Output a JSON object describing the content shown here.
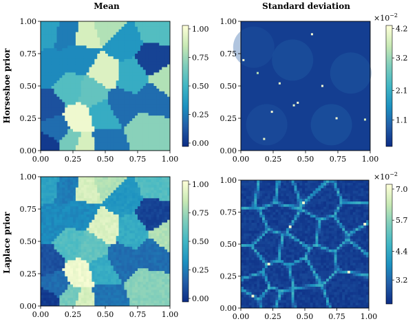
{
  "column_titles": [
    "Mean",
    "Standard deviation"
  ],
  "row_labels": [
    "Horseshoe prior",
    "Laplace prior"
  ],
  "colormap": [
    "#ffffd9",
    "#c7e9b4",
    "#7fcdbb",
    "#41b6c4",
    "#1d91c0",
    "#225ea8",
    "#0c2c84"
  ],
  "chart_data": [
    {
      "type": "heatmap",
      "title": "",
      "row": "Horseshoe prior",
      "column": "Mean",
      "xlabel": "",
      "ylabel": "",
      "xlim": [
        0,
        1
      ],
      "ylim": [
        0,
        1
      ],
      "x_ticks": [
        "0.00",
        "0.25",
        "0.50",
        "0.75",
        "1.00"
      ],
      "y_ticks": [
        "0.00",
        "0.25",
        "0.50",
        "0.75",
        "1.00"
      ],
      "colorbar": {
        "ticks": [
          "0.00",
          "0.25",
          "0.50",
          "0.75",
          "1.00"
        ],
        "tick_values": [
          0,
          0.25,
          0.5,
          0.75,
          1.0
        ],
        "range": [
          -0.03,
          1.03
        ],
        "multiplier": ""
      },
      "cells": [
        {
          "x": 0.04,
          "y": 0.95,
          "value": 0.4
        },
        {
          "x": 0.22,
          "y": 0.92,
          "value": 0.25
        },
        {
          "x": 0.34,
          "y": 0.9,
          "value": 0.9
        },
        {
          "x": 0.52,
          "y": 0.96,
          "value": 0.8
        },
        {
          "x": 0.63,
          "y": 0.84,
          "value": 0.35
        },
        {
          "x": 0.9,
          "y": 0.95,
          "value": 0.55
        },
        {
          "x": 0.88,
          "y": 0.7,
          "value": 0.05
        },
        {
          "x": 0.08,
          "y": 0.62,
          "value": 0.3
        },
        {
          "x": 0.3,
          "y": 0.72,
          "value": 0.3
        },
        {
          "x": 0.5,
          "y": 0.6,
          "value": 0.92
        },
        {
          "x": 0.7,
          "y": 0.57,
          "value": 0.45
        },
        {
          "x": 0.97,
          "y": 0.55,
          "value": 0.8
        },
        {
          "x": 0.22,
          "y": 0.48,
          "value": 0.55
        },
        {
          "x": 0.4,
          "y": 0.45,
          "value": 0.6
        },
        {
          "x": 0.06,
          "y": 0.35,
          "value": 0.1
        },
        {
          "x": 0.62,
          "y": 0.36,
          "value": 0.2
        },
        {
          "x": 0.86,
          "y": 0.4,
          "value": 0.2
        },
        {
          "x": 0.3,
          "y": 0.24,
          "value": 0.98
        },
        {
          "x": 0.48,
          "y": 0.28,
          "value": 0.45
        },
        {
          "x": 0.82,
          "y": 0.16,
          "value": 0.7
        },
        {
          "x": 0.12,
          "y": 0.16,
          "value": 0.2
        },
        {
          "x": 0.05,
          "y": 0.04,
          "value": 0.02
        },
        {
          "x": 0.33,
          "y": 0.03,
          "value": 0.9
        },
        {
          "x": 0.5,
          "y": 0.05,
          "value": 0.22
        },
        {
          "x": 0.24,
          "y": 0.06,
          "value": 0.65
        }
      ]
    },
    {
      "type": "heatmap",
      "title": "",
      "row": "Horseshoe prior",
      "column": "Standard deviation",
      "xlabel": "",
      "ylabel": "",
      "xlim": [
        0,
        1
      ],
      "ylim": [
        0,
        1
      ],
      "x_ticks": [
        "0.00",
        "0.25",
        "0.50",
        "0.75",
        "1.00"
      ],
      "y_ticks": [
        "0.00",
        "0.25",
        "0.50",
        "0.75",
        "1.00"
      ],
      "colorbar": {
        "ticks": [
          "1.1",
          "2.1",
          "3.2",
          "4.2"
        ],
        "tick_values": [
          1.1,
          2.1,
          3.2,
          4.2
        ],
        "range": [
          0.2,
          4.3
        ],
        "multiplier_base": "×10",
        "multiplier_exp": "−2"
      },
      "background_value": 0.45,
      "hot_spots": [
        {
          "x": 0.55,
          "y": 0.9,
          "value": 4.2
        },
        {
          "x": 0.02,
          "y": 0.7,
          "value": 4.2
        },
        {
          "x": 0.13,
          "y": 0.6,
          "value": 3.5
        },
        {
          "x": 0.3,
          "y": 0.52,
          "value": 4.0
        },
        {
          "x": 0.44,
          "y": 0.37,
          "value": 4.2
        },
        {
          "x": 0.41,
          "y": 0.35,
          "value": 4.0
        },
        {
          "x": 0.63,
          "y": 0.5,
          "value": 4.2
        },
        {
          "x": 0.74,
          "y": 0.25,
          "value": 4.2
        },
        {
          "x": 0.24,
          "y": 0.3,
          "value": 4.2
        },
        {
          "x": 0.96,
          "y": 0.24,
          "value": 3.8
        },
        {
          "x": 0.18,
          "y": 0.09,
          "value": 4.0
        }
      ]
    },
    {
      "type": "heatmap",
      "title": "",
      "row": "Laplace prior",
      "column": "Mean",
      "xlabel": "",
      "ylabel": "",
      "xlim": [
        0,
        1
      ],
      "ylim": [
        0,
        1
      ],
      "x_ticks": [
        "0.00",
        "0.25",
        "0.50",
        "0.75",
        "1.00"
      ],
      "y_ticks": [
        "0.00",
        "0.25",
        "0.50",
        "0.75",
        "1.00"
      ],
      "colorbar": {
        "ticks": [
          "0.00",
          "0.25",
          "0.50",
          "0.75",
          "1.00"
        ],
        "tick_values": [
          0,
          0.25,
          0.5,
          0.75,
          1.0
        ],
        "range": [
          -0.03,
          1.03
        ],
        "multiplier": ""
      },
      "cells": [
        {
          "x": 0.04,
          "y": 0.95,
          "value": 0.4
        },
        {
          "x": 0.22,
          "y": 0.92,
          "value": 0.25
        },
        {
          "x": 0.34,
          "y": 0.9,
          "value": 0.9
        },
        {
          "x": 0.52,
          "y": 0.96,
          "value": 0.8
        },
        {
          "x": 0.63,
          "y": 0.84,
          "value": 0.35
        },
        {
          "x": 0.9,
          "y": 0.95,
          "value": 0.55
        },
        {
          "x": 0.88,
          "y": 0.7,
          "value": 0.05
        },
        {
          "x": 0.08,
          "y": 0.62,
          "value": 0.3
        },
        {
          "x": 0.3,
          "y": 0.72,
          "value": 0.3
        },
        {
          "x": 0.5,
          "y": 0.6,
          "value": 0.92
        },
        {
          "x": 0.7,
          "y": 0.57,
          "value": 0.45
        },
        {
          "x": 0.97,
          "y": 0.55,
          "value": 0.8
        },
        {
          "x": 0.22,
          "y": 0.48,
          "value": 0.55
        },
        {
          "x": 0.4,
          "y": 0.45,
          "value": 0.6
        },
        {
          "x": 0.06,
          "y": 0.35,
          "value": 0.1
        },
        {
          "x": 0.62,
          "y": 0.36,
          "value": 0.2
        },
        {
          "x": 0.86,
          "y": 0.4,
          "value": 0.2
        },
        {
          "x": 0.3,
          "y": 0.24,
          "value": 0.98
        },
        {
          "x": 0.48,
          "y": 0.28,
          "value": 0.45
        },
        {
          "x": 0.82,
          "y": 0.16,
          "value": 0.7
        },
        {
          "x": 0.12,
          "y": 0.16,
          "value": 0.2
        },
        {
          "x": 0.05,
          "y": 0.04,
          "value": 0.02
        },
        {
          "x": 0.33,
          "y": 0.03,
          "value": 0.9
        },
        {
          "x": 0.5,
          "y": 0.05,
          "value": 0.22
        },
        {
          "x": 0.24,
          "y": 0.06,
          "value": 0.65
        }
      ]
    },
    {
      "type": "heatmap",
      "title": "",
      "row": "Laplace prior",
      "column": "Standard deviation",
      "xlabel": "",
      "ylabel": "",
      "xlim": [
        0,
        1
      ],
      "ylim": [
        0,
        1
      ],
      "x_ticks": [
        "0.00",
        "0.25",
        "0.50",
        "0.75",
        "1.00"
      ],
      "y_ticks": [
        "0.00",
        "0.25",
        "0.50",
        "0.75",
        "1.00"
      ],
      "colorbar": {
        "ticks": [
          "3.2",
          "4.4",
          "5.7",
          "7.0"
        ],
        "tick_values": [
          3.2,
          4.4,
          5.7,
          7.0
        ],
        "range": [
          2.2,
          7.2
        ],
        "multiplier_base": "×10",
        "multiplier_exp": "−2"
      },
      "background_value": 2.5,
      "boundary_value": 4.6,
      "peak_value": 7.0
    }
  ]
}
